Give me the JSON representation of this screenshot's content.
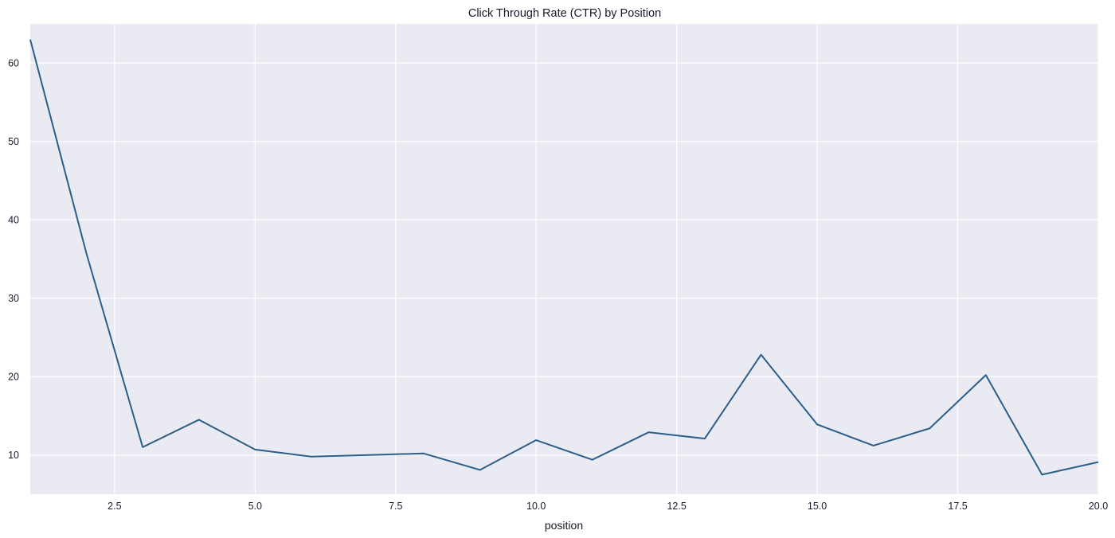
{
  "chart_data": {
    "type": "line",
    "title": "Click Through Rate (CTR) by Position",
    "xlabel": "position",
    "ylabel": "",
    "xlim": [
      1,
      20
    ],
    "ylim": [
      5,
      65
    ],
    "x_ticks": [
      2.5,
      5.0,
      7.5,
      10.0,
      12.5,
      15.0,
      17.5,
      20.0
    ],
    "x_tick_labels": [
      "2.5",
      "5.0",
      "7.5",
      "10.0",
      "12.5",
      "15.0",
      "17.5",
      "20.0"
    ],
    "y_ticks": [
      10,
      20,
      30,
      40,
      50,
      60
    ],
    "y_tick_labels": [
      "10",
      "20",
      "30",
      "40",
      "50",
      "60"
    ],
    "grid": true,
    "background": "#eaeaf2",
    "line_color": "#2b5f8a",
    "series": [
      {
        "x": [
          1,
          2,
          3,
          4,
          5,
          6,
          7,
          8,
          9,
          10,
          11,
          12,
          13,
          14,
          15,
          16,
          17,
          18,
          19,
          20
        ],
        "values": [
          63.0,
          35.7,
          11.0,
          14.5,
          10.7,
          9.8,
          10.0,
          10.2,
          8.1,
          11.9,
          9.4,
          12.9,
          12.1,
          22.8,
          13.9,
          11.2,
          13.4,
          20.2,
          7.5,
          9.1
        ]
      }
    ]
  }
}
